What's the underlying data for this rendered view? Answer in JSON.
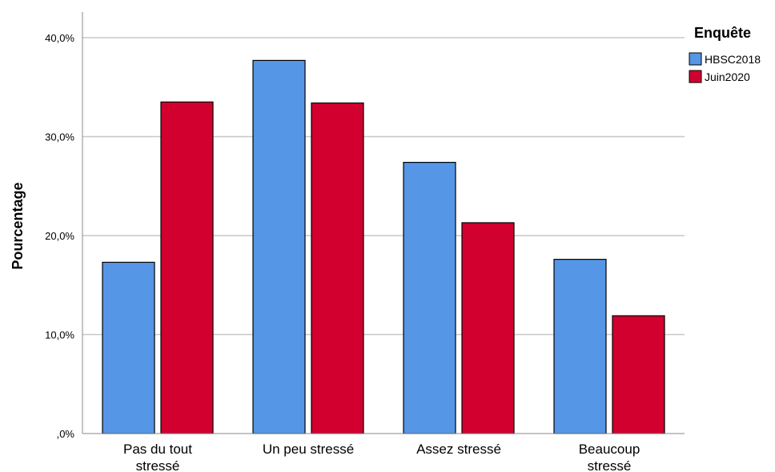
{
  "chart_data": {
    "type": "bar",
    "ylabel": "Pourcentage",
    "ylim": [
      0,
      40
    ],
    "yticks": [
      {
        "value": 0,
        "label": ",0%"
      },
      {
        "value": 10,
        "label": "10,0%"
      },
      {
        "value": 20,
        "label": "20,0%"
      },
      {
        "value": 30,
        "label": "30,0%"
      },
      {
        "value": 40,
        "label": "40,0%"
      }
    ],
    "categories": [
      [
        "Pas du tout",
        "stressé"
      ],
      [
        "Un peu stressé"
      ],
      [
        "Assez stressé"
      ],
      [
        "Beaucoup",
        "stressé"
      ]
    ],
    "legend": {
      "title": "Enquête",
      "position": "top-right"
    },
    "grid": true,
    "series": [
      {
        "name": "HBSC2018",
        "color": "#5596E6",
        "values": [
          17.3,
          37.7,
          27.4,
          17.6
        ]
      },
      {
        "name": "Juin2020",
        "color": "#D1002F",
        "values": [
          33.5,
          33.4,
          21.3,
          11.9
        ]
      }
    ]
  }
}
